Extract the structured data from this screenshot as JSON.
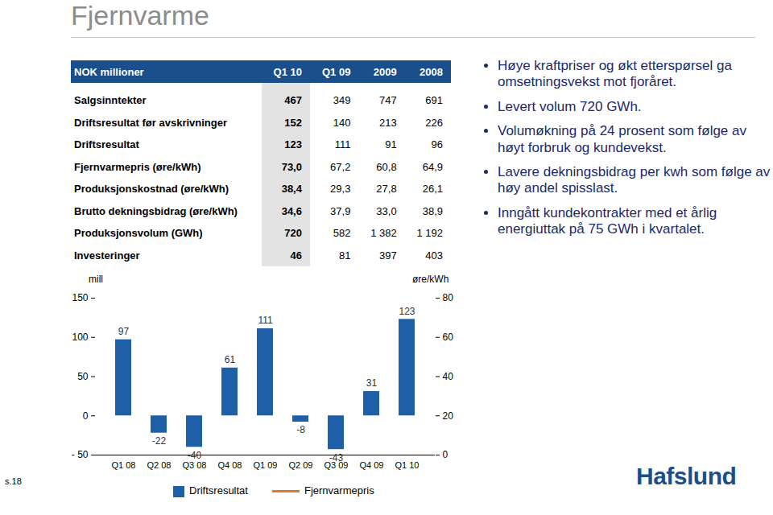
{
  "title": "Fjernvarme",
  "table": {
    "header": [
      "NOK millioner",
      "Q1 10",
      "Q1 09",
      "2009",
      "2008"
    ],
    "rows": [
      [
        "Salgsinntekter",
        "467",
        "349",
        "747",
        "691"
      ],
      [
        "Driftsresultat før avskrivninger",
        "152",
        "140",
        "213",
        "226"
      ],
      [
        "Driftsresultat",
        "123",
        "111",
        "91",
        "96"
      ],
      [
        "Fjernvarmepris (øre/kWh)",
        "73,0",
        "67,2",
        "60,8",
        "64,9"
      ],
      [
        "Produksjonskostnad (øre/kWh)",
        "38,4",
        "29,3",
        "27,8",
        "26,1"
      ],
      [
        "Brutto dekningsbidrag (øre/kWh)",
        "34,6",
        "37,9",
        "33,0",
        "38,9"
      ],
      [
        "Produksjonsvolum (GWh)",
        "720",
        "582",
        "1 382",
        "1 192"
      ],
      [
        "Investeringer",
        "46",
        "81",
        "397",
        "403"
      ]
    ]
  },
  "bullets": [
    "Høye kraftpriser og økt etterspørsel ga omsetningsvekst mot fjoråret.",
    "Levert volum 720 GWh.",
    "Volumøkning på 24 prosent som følge av høyt forbruk og kundevekst.",
    "Lavere dekningsbidrag per kwh som følge av høy andel spisslast.",
    "Inngått kundekontrakter med et årlig energiuttak på 75 GWh i kvartalet."
  ],
  "chart_data": {
    "type": "bar",
    "categories": [
      "Q1 08",
      "Q2 08",
      "Q3 08",
      "Q4 08",
      "Q1 09",
      "Q2 09",
      "Q3 09",
      "Q4 09",
      "Q1 10"
    ],
    "series": [
      {
        "name": "Driftsresultat",
        "type": "bar",
        "color": "#1f5fa8",
        "values": [
          97,
          -22,
          -40,
          61,
          111,
          -8,
          -43,
          31,
          123
        ]
      },
      {
        "name": "Fjernvarmepris",
        "type": "line",
        "axis": "y2",
        "color": "#e0782e",
        "values": [
          null,
          null,
          null,
          null,
          null,
          null,
          null,
          null,
          null
        ]
      }
    ],
    "y_label": "mill",
    "y2_label": "øre/kWh",
    "ylim": [
      -50,
      150
    ],
    "yticks": [
      {
        "value": -50,
        "label": "- 50"
      },
      0,
      50,
      100,
      150
    ],
    "y2lim": [
      0,
      80
    ],
    "y2ticks": [
      0,
      20,
      40,
      60,
      80
    ],
    "data_labels": true,
    "grid": false,
    "legend": "bottom"
  },
  "footer": "s.18",
  "logo": "Hafslund"
}
